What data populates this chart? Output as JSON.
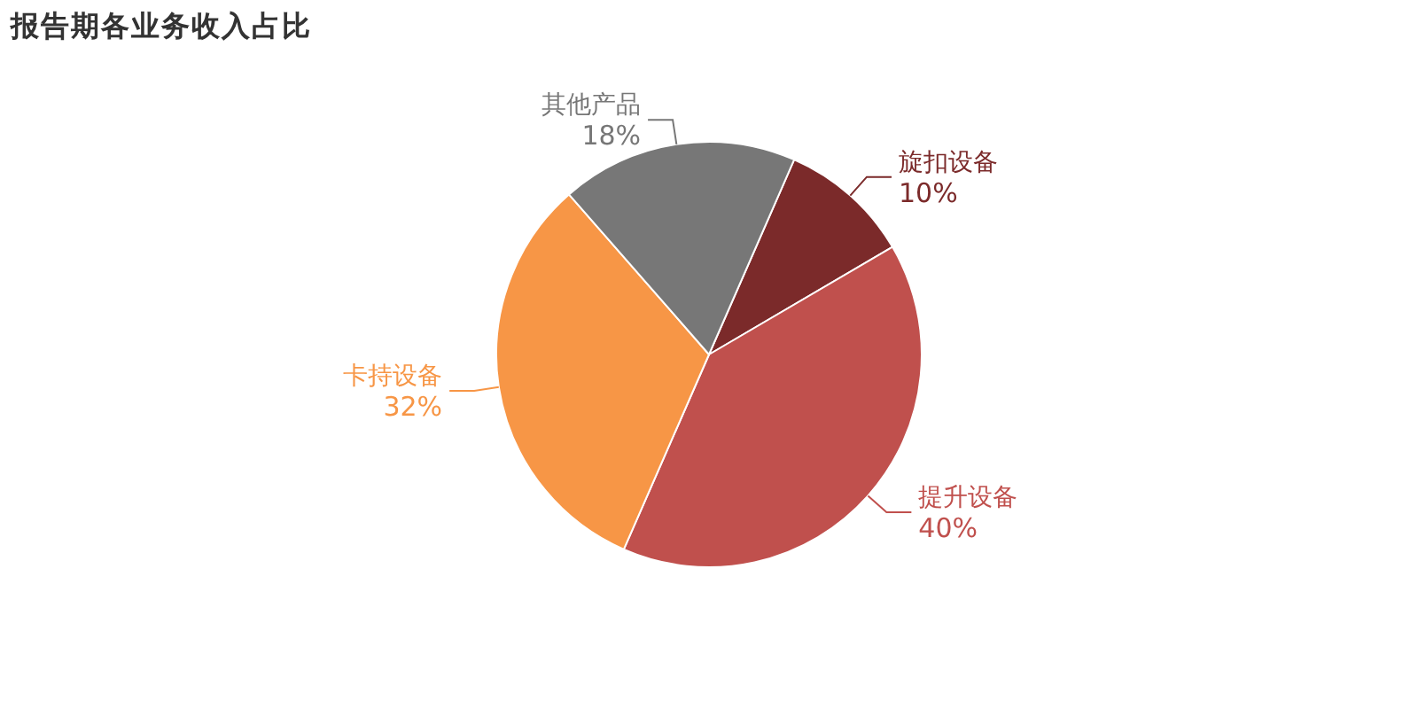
{
  "chart_data": {
    "type": "pie",
    "title": "报告期各业务收入占比",
    "categories": [
      "旋扣设备",
      "提升设备",
      "卡持设备",
      "其他产品"
    ],
    "values": [
      10,
      40,
      32,
      18
    ],
    "colors": [
      "#7b2a2a",
      "#c0504d",
      "#f79646",
      "#777777"
    ],
    "value_labels": [
      "10%",
      "40%",
      "32%",
      "18%"
    ]
  }
}
